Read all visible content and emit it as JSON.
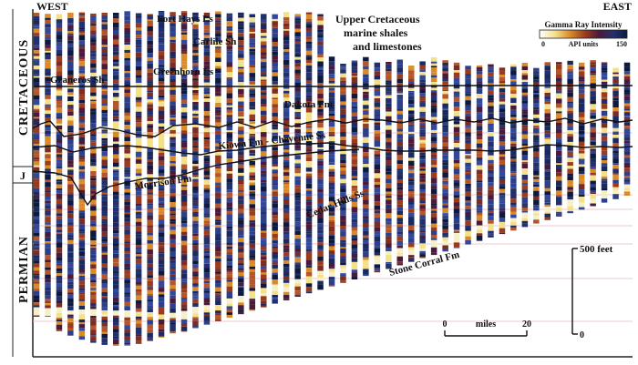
{
  "header": {
    "west": "WEST",
    "east": "EAST"
  },
  "periods": [
    {
      "key": "cretaceous",
      "label": "CRETACEOUS"
    },
    {
      "key": "jurassic",
      "label": "J"
    },
    {
      "key": "permian",
      "label": "PERMIAN"
    }
  ],
  "formations": {
    "fort_hays": "Fort Hays Ls",
    "carlile": "Carlile Sh",
    "upper_cretaceous_1": "Upper Cretaceous",
    "upper_cretaceous_2": "marine shales",
    "upper_cretaceous_3": "and limestones",
    "greenhorn": "Greenhorn Ls",
    "graneros": "Graneros Sh",
    "dakota": "Dakota Fm",
    "kiowa": "Kiowa Fm - Cheyenne Ss",
    "morrison": "Morrison Fm",
    "cedar_hills": "Cedar Hills Ss",
    "stone_corral": "Stone Corral Fm"
  },
  "legend": {
    "title": "Gamma Ray Intensity",
    "min": "0",
    "unit": "API units",
    "max": "150",
    "colors": [
      "#ffffff",
      "#f3e08a",
      "#d98a2a",
      "#9a3b1e",
      "#4a1a3a",
      "#23306e",
      "#0d1a3f"
    ]
  },
  "scales": {
    "vertical_label": "500 feet",
    "vertical_zero": "0",
    "horizontal_start": "0",
    "horizontal_label": "miles",
    "horizontal_end": "20"
  },
  "logs": {
    "count": 53
  }
}
